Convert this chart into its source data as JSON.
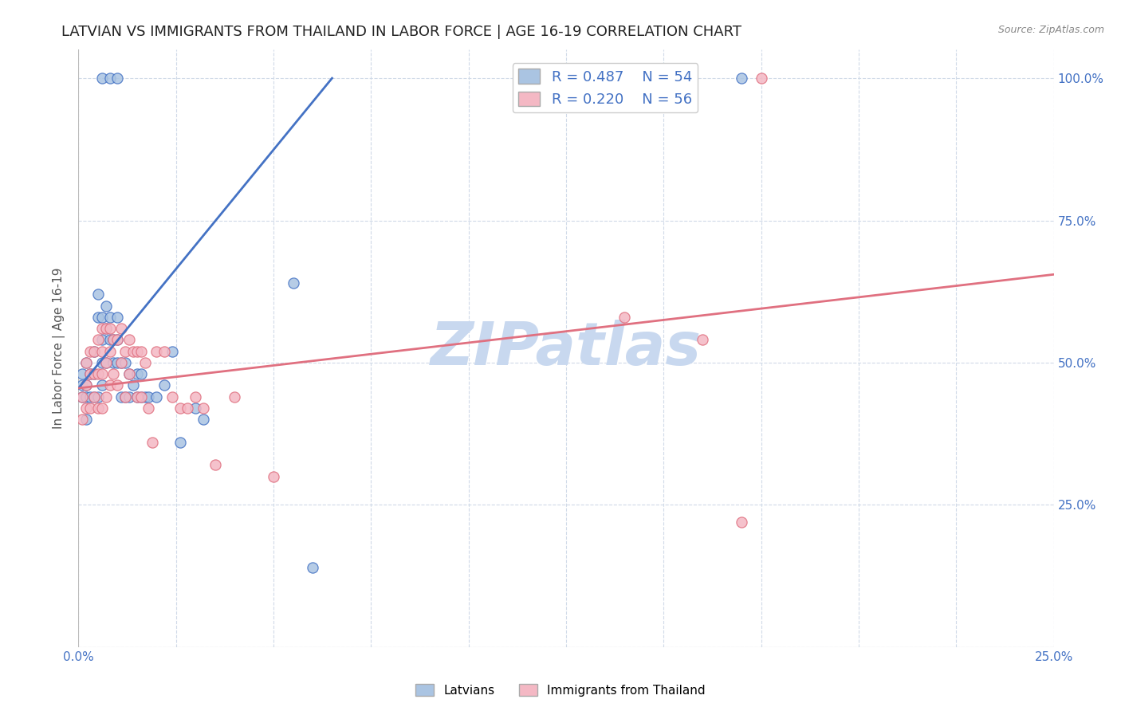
{
  "title": "LATVIAN VS IMMIGRANTS FROM THAILAND IN LABOR FORCE | AGE 16-19 CORRELATION CHART",
  "source": "Source: ZipAtlas.com",
  "ylabel": "In Labor Force | Age 16-19",
  "xlim": [
    0.0,
    0.25
  ],
  "ylim": [
    0.0,
    1.05
  ],
  "xticks": [
    0.0,
    0.025,
    0.05,
    0.075,
    0.1,
    0.125,
    0.15,
    0.175,
    0.2,
    0.225,
    0.25
  ],
  "yticks": [
    0.0,
    0.25,
    0.5,
    0.75,
    1.0
  ],
  "yticklabels": [
    "",
    "25.0%",
    "50.0%",
    "75.0%",
    "100.0%"
  ],
  "latvian_R": 0.487,
  "latvian_N": 54,
  "thailand_R": 0.22,
  "thailand_N": 56,
  "latvian_color": "#aac4e2",
  "thailand_color": "#f4b8c4",
  "latvian_line_color": "#4472c4",
  "thailand_line_color": "#e07080",
  "background_color": "#ffffff",
  "grid_color": "#d0dae8",
  "title_fontsize": 13,
  "axis_label_fontsize": 11,
  "tick_fontsize": 11,
  "watermark_color": "#c8d8ef",
  "lat_line_x0": 0.0,
  "lat_line_y0": 0.455,
  "lat_line_x1": 0.065,
  "lat_line_y1": 1.0,
  "thai_line_x0": 0.0,
  "thai_line_y0": 0.455,
  "thai_line_x1": 0.25,
  "thai_line_y1": 0.655,
  "latvian_x": [
    0.001,
    0.001,
    0.001,
    0.002,
    0.002,
    0.002,
    0.002,
    0.003,
    0.003,
    0.004,
    0.004,
    0.004,
    0.005,
    0.005,
    0.005,
    0.006,
    0.006,
    0.006,
    0.006,
    0.006,
    0.007,
    0.007,
    0.007,
    0.008,
    0.008,
    0.008,
    0.009,
    0.009,
    0.01,
    0.01,
    0.01,
    0.01,
    0.011,
    0.011,
    0.012,
    0.012,
    0.013,
    0.013,
    0.014,
    0.015,
    0.015,
    0.016,
    0.016,
    0.017,
    0.018,
    0.02,
    0.022,
    0.024,
    0.026,
    0.03,
    0.032,
    0.055,
    0.06,
    0.17
  ],
  "latvian_y": [
    0.44,
    0.46,
    0.48,
    0.4,
    0.44,
    0.46,
    0.5,
    0.44,
    0.48,
    0.44,
    0.48,
    0.52,
    0.44,
    0.58,
    0.62,
    0.46,
    0.5,
    0.54,
    0.58,
    1.0,
    0.5,
    0.56,
    0.6,
    0.54,
    0.58,
    1.0,
    0.5,
    0.54,
    0.5,
    0.54,
    0.58,
    1.0,
    0.44,
    0.5,
    0.44,
    0.5,
    0.44,
    0.48,
    0.46,
    0.44,
    0.48,
    0.44,
    0.48,
    0.44,
    0.44,
    0.44,
    0.46,
    0.52,
    0.36,
    0.42,
    0.4,
    0.64,
    0.14,
    1.0
  ],
  "thailand_x": [
    0.001,
    0.001,
    0.002,
    0.002,
    0.002,
    0.003,
    0.003,
    0.003,
    0.004,
    0.004,
    0.004,
    0.005,
    0.005,
    0.005,
    0.006,
    0.006,
    0.006,
    0.006,
    0.007,
    0.007,
    0.007,
    0.008,
    0.008,
    0.008,
    0.009,
    0.009,
    0.01,
    0.01,
    0.011,
    0.011,
    0.012,
    0.012,
    0.013,
    0.013,
    0.014,
    0.015,
    0.015,
    0.016,
    0.016,
    0.017,
    0.018,
    0.019,
    0.02,
    0.022,
    0.024,
    0.026,
    0.028,
    0.03,
    0.032,
    0.035,
    0.04,
    0.05,
    0.14,
    0.16,
    0.17,
    0.175
  ],
  "thailand_y": [
    0.4,
    0.44,
    0.42,
    0.46,
    0.5,
    0.42,
    0.48,
    0.52,
    0.44,
    0.48,
    0.52,
    0.42,
    0.48,
    0.54,
    0.42,
    0.48,
    0.52,
    0.56,
    0.44,
    0.5,
    0.56,
    0.46,
    0.52,
    0.56,
    0.48,
    0.54,
    0.46,
    0.54,
    0.5,
    0.56,
    0.44,
    0.52,
    0.48,
    0.54,
    0.52,
    0.44,
    0.52,
    0.44,
    0.52,
    0.5,
    0.42,
    0.36,
    0.52,
    0.52,
    0.44,
    0.42,
    0.42,
    0.44,
    0.42,
    0.32,
    0.44,
    0.3,
    0.58,
    0.54,
    0.22,
    1.0
  ]
}
